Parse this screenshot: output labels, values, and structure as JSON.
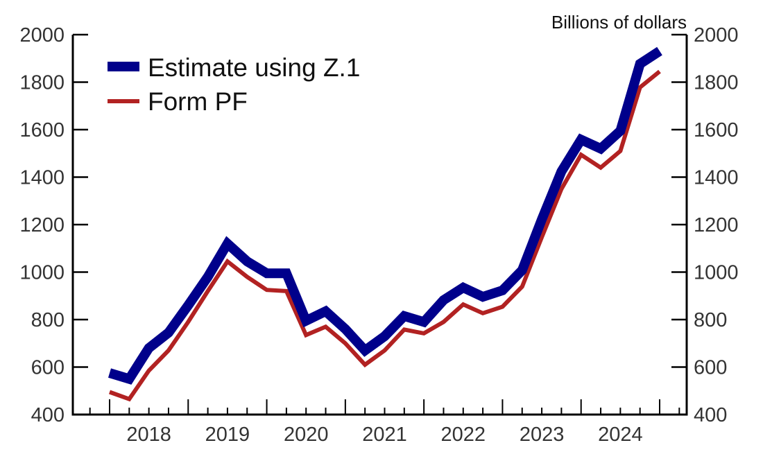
{
  "chart_data": {
    "type": "line",
    "title": "",
    "unit_label": "Billions of dollars",
    "x": [
      "2017Q4",
      "2018Q1",
      "2018Q2",
      "2018Q3",
      "2018Q4",
      "2019Q1",
      "2019Q2",
      "2019Q3",
      "2019Q4",
      "2020Q1",
      "2020Q2",
      "2020Q3",
      "2020Q4",
      "2021Q1",
      "2021Q2",
      "2021Q3",
      "2021Q4",
      "2022Q1",
      "2022Q2",
      "2022Q3",
      "2022Q4",
      "2023Q1",
      "2023Q2",
      "2023Q3",
      "2023Q4",
      "2024Q1",
      "2024Q2",
      "2024Q3",
      "2024Q4"
    ],
    "x_tick_labels": [
      "2018",
      "2019",
      "2020",
      "2021",
      "2022",
      "2023",
      "2024"
    ],
    "y_ticks": [
      400,
      600,
      800,
      1000,
      1200,
      1400,
      1600,
      1800,
      2000
    ],
    "ylim": [
      400,
      2000
    ],
    "grid": false,
    "legend_placement": "top-left",
    "dual_y_axis_mirrored": true,
    "series": [
      {
        "name": "Estimate using Z.1",
        "color": "#00008B",
        "values": [
          575,
          550,
          680,
          745,
          860,
          980,
          1120,
          1045,
          995,
          995,
          795,
          835,
          760,
          670,
          730,
          815,
          790,
          882,
          935,
          896,
          923,
          1008,
          1222,
          1424,
          1558,
          1520,
          1595,
          1877,
          1931
        ]
      },
      {
        "name": "Form PF",
        "color": "#B22222",
        "values": [
          495,
          465,
          585,
          670,
          790,
          920,
          1045,
          980,
          925,
          920,
          735,
          770,
          700,
          610,
          670,
          758,
          742,
          790,
          864,
          827,
          854,
          939,
          1147,
          1350,
          1494,
          1440,
          1510,
          1778,
          1845
        ]
      }
    ]
  }
}
